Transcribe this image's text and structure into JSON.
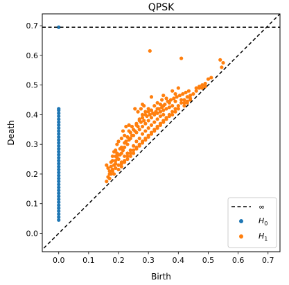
{
  "chart_data": {
    "type": "scatter",
    "title": "QPSK",
    "xlabel": "Birth",
    "ylabel": "Death",
    "xlim": [
      -0.055,
      0.74
    ],
    "ylim": [
      -0.062,
      0.74
    ],
    "x_ticks": [
      "0.0",
      "0.1",
      "0.2",
      "0.3",
      "0.4",
      "0.5",
      "0.6",
      "0.7"
    ],
    "y_ticks": [
      "0.0",
      "0.1",
      "0.2",
      "0.3",
      "0.4",
      "0.5",
      "0.6",
      "0.7"
    ],
    "infinity_line": {
      "label": "∞",
      "y": 0.695,
      "style": "dashed",
      "color": "#000000"
    },
    "diagonal": {
      "style": "dashed",
      "color": "#000000"
    },
    "legend_position": "bottom-right",
    "series": [
      {
        "name": "H_0",
        "legend_label": "H",
        "legend_subscript": "0",
        "color": "#1f77b4",
        "points": [
          [
            0.0,
            0.695
          ],
          [
            0.0,
            0.42
          ],
          [
            0.0,
            0.415
          ],
          [
            0.0,
            0.405
          ],
          [
            0.0,
            0.395
          ],
          [
            0.0,
            0.385
          ],
          [
            0.0,
            0.375
          ],
          [
            0.0,
            0.365
          ],
          [
            0.0,
            0.355
          ],
          [
            0.0,
            0.345
          ],
          [
            0.0,
            0.335
          ],
          [
            0.0,
            0.325
          ],
          [
            0.0,
            0.315
          ],
          [
            0.0,
            0.305
          ],
          [
            0.0,
            0.295
          ],
          [
            0.0,
            0.285
          ],
          [
            0.0,
            0.275
          ],
          [
            0.0,
            0.265
          ],
          [
            0.0,
            0.255
          ],
          [
            0.0,
            0.245
          ],
          [
            0.0,
            0.235
          ],
          [
            0.0,
            0.225
          ],
          [
            0.0,
            0.215
          ],
          [
            0.0,
            0.205
          ],
          [
            0.0,
            0.195
          ],
          [
            0.0,
            0.185
          ],
          [
            0.0,
            0.175
          ],
          [
            0.0,
            0.165
          ],
          [
            0.0,
            0.155
          ],
          [
            0.0,
            0.145
          ],
          [
            0.0,
            0.135
          ],
          [
            0.0,
            0.125
          ],
          [
            0.0,
            0.115
          ],
          [
            0.0,
            0.105
          ],
          [
            0.0,
            0.095
          ],
          [
            0.0,
            0.085
          ],
          [
            0.0,
            0.075
          ],
          [
            0.0,
            0.065
          ],
          [
            0.0,
            0.055
          ],
          [
            0.0,
            0.045
          ]
        ]
      },
      {
        "name": "H_1",
        "legend_label": "H",
        "legend_subscript": "1",
        "color": "#ff7f0e",
        "points": [
          [
            0.305,
            0.615
          ],
          [
            0.41,
            0.59
          ],
          [
            0.54,
            0.585
          ],
          [
            0.55,
            0.575
          ],
          [
            0.545,
            0.56
          ],
          [
            0.46,
            0.49
          ],
          [
            0.47,
            0.495
          ],
          [
            0.4,
            0.49
          ],
          [
            0.38,
            0.48
          ],
          [
            0.39,
            0.47
          ],
          [
            0.35,
            0.465
          ],
          [
            0.31,
            0.46
          ],
          [
            0.345,
            0.45
          ],
          [
            0.36,
            0.455
          ],
          [
            0.33,
            0.44
          ],
          [
            0.34,
            0.435
          ],
          [
            0.28,
            0.435
          ],
          [
            0.285,
            0.43
          ],
          [
            0.32,
            0.43
          ],
          [
            0.44,
            0.455
          ],
          [
            0.43,
            0.445
          ],
          [
            0.42,
            0.44
          ],
          [
            0.16,
            0.175
          ],
          [
            0.165,
            0.19
          ],
          [
            0.17,
            0.2
          ],
          [
            0.165,
            0.22
          ],
          [
            0.16,
            0.23
          ],
          [
            0.175,
            0.24
          ],
          [
            0.18,
            0.26
          ],
          [
            0.185,
            0.275
          ],
          [
            0.19,
            0.28
          ],
          [
            0.195,
            0.3
          ],
          [
            0.2,
            0.31
          ],
          [
            0.21,
            0.32
          ],
          [
            0.22,
            0.33
          ],
          [
            0.235,
            0.345
          ],
          [
            0.245,
            0.36
          ],
          [
            0.26,
            0.37
          ],
          [
            0.27,
            0.385
          ],
          [
            0.28,
            0.39
          ],
          [
            0.29,
            0.4
          ],
          [
            0.3,
            0.41
          ],
          [
            0.31,
            0.415
          ],
          [
            0.33,
            0.42
          ],
          [
            0.35,
            0.43
          ],
          [
            0.37,
            0.44
          ],
          [
            0.39,
            0.445
          ],
          [
            0.41,
            0.45
          ],
          [
            0.2,
            0.215
          ],
          [
            0.21,
            0.225
          ],
          [
            0.22,
            0.24
          ],
          [
            0.23,
            0.25
          ],
          [
            0.24,
            0.26
          ],
          [
            0.25,
            0.27
          ],
          [
            0.26,
            0.285
          ],
          [
            0.27,
            0.295
          ],
          [
            0.28,
            0.305
          ],
          [
            0.29,
            0.315
          ],
          [
            0.3,
            0.325
          ],
          [
            0.31,
            0.335
          ],
          [
            0.32,
            0.345
          ],
          [
            0.33,
            0.355
          ],
          [
            0.34,
            0.365
          ],
          [
            0.35,
            0.375
          ],
          [
            0.36,
            0.385
          ],
          [
            0.37,
            0.395
          ],
          [
            0.38,
            0.4
          ],
          [
            0.39,
            0.41
          ],
          [
            0.4,
            0.42
          ],
          [
            0.42,
            0.43
          ],
          [
            0.43,
            0.44
          ],
          [
            0.44,
            0.45
          ],
          [
            0.185,
            0.2
          ],
          [
            0.19,
            0.22
          ],
          [
            0.2,
            0.25
          ],
          [
            0.21,
            0.27
          ],
          [
            0.22,
            0.29
          ],
          [
            0.23,
            0.3
          ],
          [
            0.24,
            0.32
          ],
          [
            0.25,
            0.33
          ],
          [
            0.26,
            0.34
          ],
          [
            0.27,
            0.35
          ],
          [
            0.28,
            0.36
          ],
          [
            0.29,
            0.37
          ],
          [
            0.3,
            0.38
          ],
          [
            0.31,
            0.39
          ],
          [
            0.32,
            0.4
          ],
          [
            0.33,
            0.405
          ],
          [
            0.34,
            0.41
          ],
          [
            0.35,
            0.415
          ],
          [
            0.36,
            0.42
          ],
          [
            0.37,
            0.425
          ],
          [
            0.38,
            0.43
          ],
          [
            0.2,
            0.23
          ],
          [
            0.21,
            0.24
          ],
          [
            0.22,
            0.26
          ],
          [
            0.23,
            0.27
          ],
          [
            0.24,
            0.28
          ],
          [
            0.25,
            0.295
          ],
          [
            0.26,
            0.31
          ],
          [
            0.27,
            0.32
          ],
          [
            0.28,
            0.335
          ],
          [
            0.29,
            0.345
          ],
          [
            0.3,
            0.355
          ],
          [
            0.31,
            0.365
          ],
          [
            0.32,
            0.375
          ],
          [
            0.33,
            0.385
          ],
          [
            0.34,
            0.395
          ],
          [
            0.35,
            0.4
          ],
          [
            0.17,
            0.185
          ],
          [
            0.175,
            0.2
          ],
          [
            0.18,
            0.215
          ],
          [
            0.185,
            0.23
          ],
          [
            0.19,
            0.245
          ],
          [
            0.195,
            0.255
          ],
          [
            0.205,
            0.265
          ],
          [
            0.215,
            0.28
          ],
          [
            0.225,
            0.31
          ],
          [
            0.235,
            0.315
          ],
          [
            0.245,
            0.33
          ],
          [
            0.255,
            0.345
          ],
          [
            0.265,
            0.36
          ],
          [
            0.275,
            0.375
          ],
          [
            0.285,
            0.38
          ],
          [
            0.295,
            0.395
          ],
          [
            0.305,
            0.4
          ],
          [
            0.315,
            0.405
          ],
          [
            0.325,
            0.41
          ],
          [
            0.335,
            0.42
          ],
          [
            0.345,
            0.425
          ],
          [
            0.355,
            0.435
          ],
          [
            0.365,
            0.445
          ],
          [
            0.375,
            0.45
          ],
          [
            0.385,
            0.455
          ],
          [
            0.395,
            0.46
          ],
          [
            0.405,
            0.465
          ],
          [
            0.415,
            0.47
          ],
          [
            0.425,
            0.475
          ],
          [
            0.435,
            0.48
          ],
          [
            0.45,
            0.47
          ],
          [
            0.46,
            0.48
          ],
          [
            0.47,
            0.49
          ],
          [
            0.48,
            0.49
          ],
          [
            0.49,
            0.495
          ],
          [
            0.21,
            0.235
          ],
          [
            0.22,
            0.245
          ],
          [
            0.23,
            0.26
          ],
          [
            0.24,
            0.27
          ],
          [
            0.25,
            0.28
          ],
          [
            0.26,
            0.29
          ],
          [
            0.27,
            0.3
          ],
          [
            0.28,
            0.31
          ],
          [
            0.29,
            0.32
          ],
          [
            0.3,
            0.33
          ],
          [
            0.31,
            0.34
          ],
          [
            0.32,
            0.35
          ],
          [
            0.33,
            0.36
          ],
          [
            0.34,
            0.37
          ],
          [
            0.35,
            0.38
          ],
          [
            0.36,
            0.39
          ],
          [
            0.37,
            0.4
          ],
          [
            0.38,
            0.41
          ],
          [
            0.39,
            0.42
          ],
          [
            0.4,
            0.43
          ],
          [
            0.41,
            0.44
          ],
          [
            0.42,
            0.45
          ],
          [
            0.43,
            0.46
          ],
          [
            0.44,
            0.465
          ],
          [
            0.18,
            0.21
          ],
          [
            0.19,
            0.235
          ],
          [
            0.2,
            0.265
          ],
          [
            0.21,
            0.29
          ],
          [
            0.22,
            0.305
          ],
          [
            0.23,
            0.325
          ],
          [
            0.24,
            0.34
          ],
          [
            0.25,
            0.35
          ],
          [
            0.26,
            0.365
          ],
          [
            0.27,
            0.38
          ],
          [
            0.28,
            0.4
          ],
          [
            0.29,
            0.41
          ],
          [
            0.3,
            0.42
          ],
          [
            0.255,
            0.42
          ],
          [
            0.265,
            0.41
          ],
          [
            0.275,
            0.42
          ],
          [
            0.225,
            0.36
          ],
          [
            0.235,
            0.365
          ],
          [
            0.215,
            0.345
          ],
          [
            0.17,
            0.21
          ],
          [
            0.175,
            0.225
          ],
          [
            0.18,
            0.245
          ],
          [
            0.19,
            0.26
          ],
          [
            0.195,
            0.27
          ],
          [
            0.205,
            0.285
          ],
          [
            0.5,
            0.52
          ],
          [
            0.51,
            0.525
          ],
          [
            0.49,
            0.505
          ],
          [
            0.48,
            0.5
          ]
        ]
      }
    ]
  }
}
